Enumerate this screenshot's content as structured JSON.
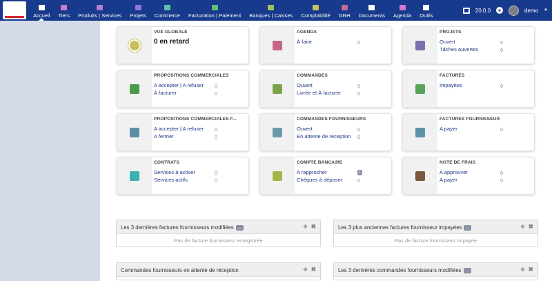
{
  "menu": [
    {
      "label": "Accueil",
      "icon": "home-icon",
      "color": "#ffffff",
      "active": true
    },
    {
      "label": "Tiers",
      "icon": "building-icon",
      "color": "#c87bd0"
    },
    {
      "label": "Produits | Services",
      "icon": "box-icon",
      "color": "#b07cd4"
    },
    {
      "label": "Projets",
      "icon": "projects-icon",
      "color": "#8e7ad6"
    },
    {
      "label": "Commerce",
      "icon": "commerce-icon",
      "color": "#5dc1a8"
    },
    {
      "label": "Facturation | Paiement",
      "icon": "invoice-icon",
      "color": "#5dc17a"
    },
    {
      "label": "Banques | Caisses",
      "icon": "bank-icon",
      "color": "#9fc15d"
    },
    {
      "label": "Comptabilité",
      "icon": "accounting-icon",
      "color": "#c9c05a"
    },
    {
      "label": "GRH",
      "icon": "hr-icon",
      "color": "#c46a9b"
    },
    {
      "label": "Documents",
      "icon": "folder-icon",
      "color": "#ffffff"
    },
    {
      "label": "Agenda",
      "icon": "calendar-icon",
      "color": "#d278c8"
    },
    {
      "label": "Outils",
      "icon": "tools-icon",
      "color": "#ffffff"
    }
  ],
  "toolbar": {
    "version": "20.0.0",
    "user": "demo"
  },
  "cards": [
    {
      "title": "VUE GLOBALE",
      "big": "0 en retard",
      "icon": "sun-icon",
      "color": "#c9c05a",
      "rows": []
    },
    {
      "title": "AGENDA",
      "icon": "calendar-icon",
      "color": "#c2678a",
      "rows": [
        {
          "label": "À faire",
          "value": "0"
        }
      ]
    },
    {
      "title": "PROJETS",
      "icon": "projects-icon",
      "color": "#7b6fae",
      "rows": [
        {
          "label": "Ouvert",
          "value": "0"
        },
        {
          "label": "Tâches ouvertes",
          "value": "0"
        }
      ]
    },
    {
      "title": "PROPOSITIONS COMMERCIALES",
      "icon": "proposal-icon",
      "color": "#4a9a4a",
      "rows": [
        {
          "label": "A accepter | A refuser",
          "value": "0"
        },
        {
          "label": "À facturer",
          "value": "0"
        }
      ]
    },
    {
      "title": "COMMANDES",
      "icon": "order-icon",
      "color": "#7aa24a",
      "rows": [
        {
          "label": "Ouvert",
          "value": "0"
        },
        {
          "label": "Livrée et À facturer",
          "value": "0"
        }
      ]
    },
    {
      "title": "FACTURES",
      "icon": "invoice-icon",
      "color": "#58a458",
      "rows": [
        {
          "label": "Impayées",
          "value": "0"
        }
      ]
    },
    {
      "title": "PROPOSITIONS COMMERCIALES F...",
      "icon": "supplier-proposal-icon",
      "color": "#5a8fa8",
      "rows": [
        {
          "label": "A accepter | A refuser",
          "value": "0"
        },
        {
          "label": "A fermer",
          "value": "0"
        }
      ]
    },
    {
      "title": "COMMANDES FOURNISSEURS",
      "icon": "supplier-order-icon",
      "color": "#6a98ab",
      "rows": [
        {
          "label": "Ouvert",
          "value": "0"
        },
        {
          "label": "En attente de réception",
          "value": "0"
        }
      ]
    },
    {
      "title": "FACTURES FOURNISSEUR",
      "icon": "supplier-invoice-icon",
      "color": "#5f93a8",
      "rows": [
        {
          "label": "A payer",
          "value": "0"
        }
      ]
    },
    {
      "title": "CONTRATS",
      "icon": "briefcase-icon",
      "color": "#3fb0b0",
      "rows": [
        {
          "label": "Services à activer",
          "value": "0"
        },
        {
          "label": "Services actifs",
          "value": "0"
        }
      ]
    },
    {
      "title": "COMPTE BANCAIRE",
      "icon": "bank-icon",
      "color": "#a6b34a",
      "rows": [
        {
          "label": "A rapprocher",
          "value": "1",
          "badge": true
        },
        {
          "label": "Chèques à déposer",
          "value": "0"
        }
      ]
    },
    {
      "title": "NOTE DE FRAIS",
      "icon": "wallet-icon",
      "color": "#7a5a3a",
      "rows": [
        {
          "label": "A approuver",
          "value": "0"
        },
        {
          "label": "A payer",
          "value": "0"
        }
      ]
    }
  ],
  "panels": [
    {
      "title": "Les 3 dernières factures fournisseurs modifiées",
      "body": "Pas de facture fournisseur enregistrée"
    },
    {
      "title": "Les 3 plus anciennes factures fournisseur impayées",
      "body": "Pas de facture fournisseur impayée"
    },
    {
      "title": "Commandes fournisseurs en attente de réception",
      "body": ""
    },
    {
      "title": "Les 3 dernières commandes fournisseurs modifiées",
      "body": ""
    }
  ],
  "labels": {
    "more": "...",
    "move": "✥",
    "close": "✖"
  }
}
